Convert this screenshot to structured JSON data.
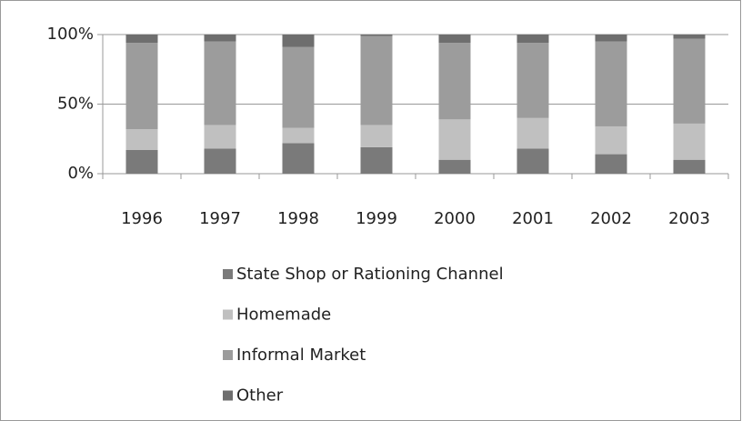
{
  "chart_data": {
    "type": "bar",
    "stacked": true,
    "categories": [
      "1996",
      "1997",
      "1998",
      "1999",
      "2000",
      "2001",
      "2002",
      "2003"
    ],
    "series": [
      {
        "name": "State Shop or Rationing Channel",
        "color": "#7a7a7a",
        "values": [
          17,
          18,
          22,
          19,
          10,
          18,
          14,
          10
        ]
      },
      {
        "name": "Homemade",
        "color": "#c0c0c0",
        "values": [
          15,
          17,
          11,
          16,
          29,
          22,
          20,
          26
        ]
      },
      {
        "name": "Informal Market",
        "color": "#9c9c9c",
        "values": [
          62,
          60,
          58,
          64,
          55,
          54,
          61,
          61
        ]
      },
      {
        "name": "Other",
        "color": "#6e6e6e",
        "values": [
          6,
          5,
          9,
          1,
          6,
          6,
          5,
          3
        ]
      }
    ],
    "ylim": [
      0,
      100
    ],
    "yticks": [
      {
        "value": 0,
        "label": "0%"
      },
      {
        "value": 50,
        "label": "50%"
      },
      {
        "value": 100,
        "label": "100%"
      }
    ],
    "grid": true,
    "legend": "bottom"
  }
}
